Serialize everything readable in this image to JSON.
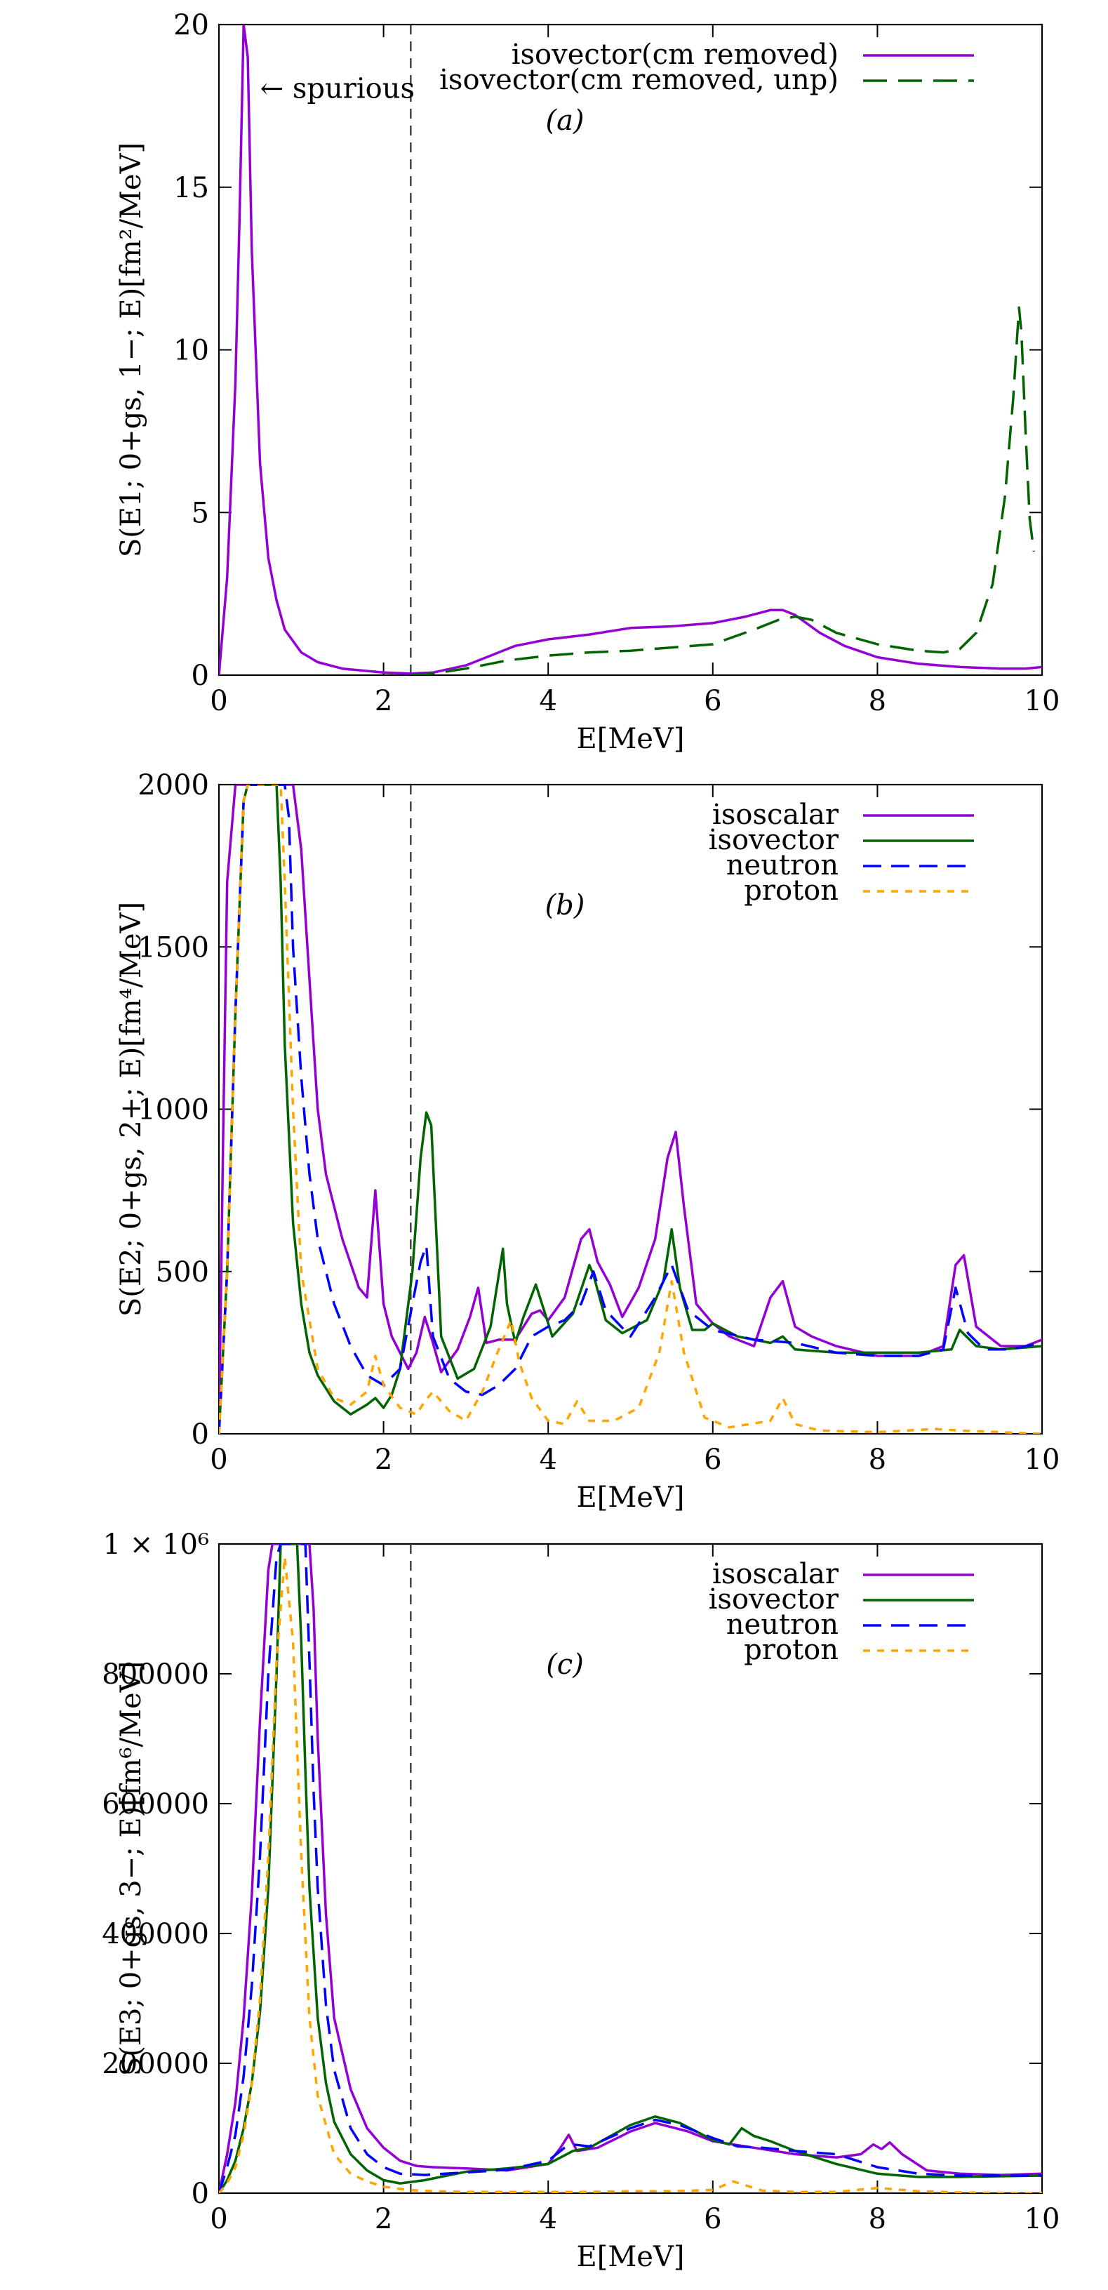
{
  "chart_data": [
    {
      "panel": "a",
      "type": "line",
      "panel_label": "(a)",
      "title": "",
      "xlabel": "E[MeV]",
      "ylabel": "S(E1; 0+gs, 1−; E)[fm²/MeV]",
      "xlim": [
        0,
        10
      ],
      "ylim": [
        0,
        20
      ],
      "xticks": [
        0,
        2,
        4,
        6,
        8,
        10
      ],
      "yticks": [
        0,
        5,
        10,
        15,
        20
      ],
      "ytick_labels": [
        "0",
        "5",
        "10",
        "15",
        "20"
      ],
      "grid": false,
      "legend_position": "top-right",
      "threshold_line_x": 2.33,
      "annotations": [
        {
          "text": "← spurious",
          "x": 0.5,
          "y": 18.0
        }
      ],
      "series": [
        {
          "name": "isovector(cm removed)",
          "color": "#9400d3",
          "dash": "solid",
          "x": [
            0.0,
            0.1,
            0.2,
            0.25,
            0.3,
            0.35,
            0.4,
            0.5,
            0.6,
            0.7,
            0.8,
            1.0,
            1.2,
            1.5,
            2.0,
            2.33,
            2.6,
            3.0,
            3.3,
            3.6,
            4.0,
            4.5,
            5.0,
            5.5,
            6.0,
            6.4,
            6.7,
            6.85,
            7.0,
            7.3,
            7.6,
            8.0,
            8.5,
            9.0,
            9.5,
            9.8,
            10.0
          ],
          "y": [
            0.0,
            3.0,
            9.0,
            14.0,
            20.0,
            19.0,
            13.0,
            6.5,
            3.6,
            2.3,
            1.4,
            0.7,
            0.4,
            0.2,
            0.08,
            0.05,
            0.08,
            0.3,
            0.6,
            0.9,
            1.1,
            1.25,
            1.45,
            1.5,
            1.6,
            1.8,
            2.0,
            2.0,
            1.85,
            1.3,
            0.9,
            0.55,
            0.35,
            0.25,
            0.2,
            0.2,
            0.25
          ]
        },
        {
          "name": "isovector(cm removed, unp)",
          "color": "#006400",
          "dash": "long",
          "x": [
            2.33,
            2.6,
            3.0,
            3.5,
            4.0,
            4.5,
            5.0,
            5.5,
            6.0,
            6.5,
            6.8,
            7.0,
            7.2,
            7.5,
            8.0,
            8.5,
            8.8,
            9.0,
            9.2,
            9.4,
            9.55,
            9.65,
            9.7,
            9.72,
            9.75,
            9.8,
            9.85,
            9.9
          ],
          "y": [
            0.0,
            0.05,
            0.2,
            0.45,
            0.6,
            0.7,
            0.75,
            0.85,
            0.95,
            1.4,
            1.7,
            1.8,
            1.7,
            1.3,
            0.95,
            0.75,
            0.7,
            0.8,
            1.3,
            2.8,
            5.5,
            8.5,
            10.5,
            11.3,
            10.5,
            7.5,
            4.8,
            3.8
          ]
        }
      ]
    },
    {
      "panel": "b",
      "type": "line",
      "panel_label": "(b)",
      "title": "",
      "xlabel": "E[MeV]",
      "ylabel": "S(E2; 0+gs, 2+; E)[fm⁴/MeV]",
      "xlim": [
        0,
        10
      ],
      "ylim": [
        0,
        2000
      ],
      "xticks": [
        0,
        2,
        4,
        6,
        8,
        10
      ],
      "yticks": [
        0,
        500,
        1000,
        1500,
        2000
      ],
      "ytick_labels": [
        "0",
        "500",
        "1000",
        "1500",
        "2000"
      ],
      "grid": false,
      "legend_position": "top-right",
      "threshold_line_x": 2.33,
      "series": [
        {
          "name": "isoscalar",
          "color": "#9400d3",
          "dash": "solid",
          "x": [
            0.0,
            0.05,
            0.1,
            0.2,
            0.9,
            1.0,
            1.1,
            1.2,
            1.3,
            1.5,
            1.7,
            1.8,
            1.9,
            2.0,
            2.1,
            2.3,
            2.4,
            2.5,
            2.6,
            2.7,
            2.9,
            3.05,
            3.15,
            3.25,
            3.4,
            3.6,
            3.8,
            3.9,
            4.0,
            4.2,
            4.4,
            4.5,
            4.6,
            4.75,
            4.9,
            5.1,
            5.3,
            5.45,
            5.55,
            5.65,
            5.8,
            6.0,
            6.2,
            6.5,
            6.7,
            6.85,
            7.0,
            7.2,
            7.5,
            8.0,
            8.5,
            8.8,
            8.95,
            9.05,
            9.2,
            9.5,
            9.8,
            10.0
          ],
          "y": [
            0,
            900,
            1700,
            2000,
            2000,
            1800,
            1400,
            1000,
            800,
            600,
            450,
            420,
            750,
            400,
            300,
            200,
            250,
            360,
            280,
            190,
            260,
            360,
            450,
            280,
            290,
            290,
            370,
            380,
            350,
            420,
            600,
            630,
            530,
            460,
            360,
            450,
            600,
            850,
            930,
            700,
            400,
            340,
            300,
            270,
            420,
            470,
            330,
            300,
            270,
            240,
            240,
            270,
            520,
            550,
            330,
            270,
            270,
            290
          ]
        },
        {
          "name": "isovector",
          "color": "#006400",
          "dash": "solid",
          "x": [
            0.0,
            0.1,
            0.2,
            0.3,
            0.35,
            0.7,
            0.75,
            0.8,
            0.9,
            1.0,
            1.1,
            1.2,
            1.4,
            1.6,
            1.8,
            1.9,
            2.0,
            2.1,
            2.2,
            2.35,
            2.45,
            2.52,
            2.58,
            2.7,
            2.9,
            3.1,
            3.3,
            3.45,
            3.5,
            3.6,
            3.7,
            3.85,
            3.9,
            4.05,
            4.3,
            4.5,
            4.55,
            4.7,
            4.9,
            5.2,
            5.4,
            5.5,
            5.6,
            5.75,
            5.9,
            6.0,
            6.3,
            6.7,
            6.85,
            7.0,
            7.5,
            8.0,
            8.5,
            8.9,
            9.0,
            9.2,
            9.5,
            10.0
          ],
          "y": [
            0,
            500,
            1300,
            1950,
            2000,
            2000,
            1700,
            1200,
            650,
            400,
            250,
            180,
            100,
            60,
            90,
            110,
            80,
            120,
            200,
            500,
            850,
            990,
            950,
            300,
            170,
            200,
            330,
            570,
            400,
            280,
            360,
            460,
            420,
            300,
            370,
            520,
            490,
            350,
            310,
            350,
            470,
            630,
            450,
            320,
            320,
            340,
            300,
            280,
            300,
            260,
            250,
            250,
            250,
            260,
            320,
            270,
            260,
            270
          ]
        },
        {
          "name": "neutron",
          "color": "#0000ff",
          "dash": "dashed",
          "x": [
            0.0,
            0.1,
            0.2,
            0.3,
            0.35,
            0.8,
            0.85,
            0.9,
            1.0,
            1.1,
            1.2,
            1.4,
            1.6,
            1.8,
            2.0,
            2.2,
            2.35,
            2.45,
            2.52,
            2.6,
            2.8,
            3.0,
            3.2,
            3.4,
            3.6,
            3.8,
            4.0,
            4.2,
            4.4,
            4.55,
            4.7,
            5.0,
            5.3,
            5.5,
            5.7,
            6.0,
            6.5,
            7.0,
            7.5,
            8.0,
            8.5,
            8.8,
            8.95,
            9.1,
            9.3,
            9.6,
            10.0
          ],
          "y": [
            0,
            500,
            1300,
            1950,
            2000,
            2000,
            1900,
            1500,
            1100,
            800,
            600,
            400,
            270,
            180,
            150,
            200,
            400,
            530,
            580,
            300,
            170,
            130,
            120,
            150,
            200,
            300,
            330,
            350,
            400,
            500,
            380,
            300,
            420,
            520,
            380,
            320,
            290,
            280,
            250,
            240,
            240,
            260,
            450,
            310,
            260,
            260,
            280
          ]
        },
        {
          "name": "proton",
          "color": "#ffa500",
          "dash": "dotted",
          "x": [
            0.0,
            0.1,
            0.2,
            0.3,
            0.35,
            0.75,
            0.8,
            0.9,
            1.0,
            1.2,
            1.4,
            1.6,
            1.8,
            1.9,
            2.0,
            2.2,
            2.4,
            2.5,
            2.6,
            2.7,
            2.8,
            3.0,
            3.2,
            3.4,
            3.55,
            3.65,
            3.8,
            4.0,
            4.2,
            4.35,
            4.5,
            4.8,
            5.1,
            5.35,
            5.5,
            5.65,
            5.9,
            6.2,
            6.7,
            6.85,
            7.0,
            7.3,
            8.0,
            8.7,
            9.0,
            10.0
          ],
          "y": [
            0,
            500,
            1300,
            1950,
            2000,
            2000,
            1700,
            1000,
            500,
            200,
            110,
            90,
            130,
            240,
            150,
            80,
            60,
            100,
            130,
            100,
            70,
            40,
            130,
            260,
            350,
            220,
            110,
            40,
            30,
            100,
            40,
            40,
            80,
            250,
            470,
            250,
            50,
            20,
            40,
            110,
            30,
            10,
            5,
            15,
            10,
            0
          ]
        }
      ]
    },
    {
      "panel": "c",
      "type": "line",
      "panel_label": "(c)",
      "title": "",
      "xlabel": "E[MeV]",
      "ylabel": "S(E3; 0+gs, 3−; E)[fm⁶/MeV]",
      "xlim": [
        0,
        10
      ],
      "ylim": [
        0,
        1000000
      ],
      "xticks": [
        0,
        2,
        4,
        6,
        8,
        10
      ],
      "yticks": [
        0,
        200000,
        400000,
        600000,
        800000,
        1000000
      ],
      "ytick_labels": [
        "0",
        "200000",
        "400000",
        "600000",
        "800000",
        "1 × 10⁶"
      ],
      "grid": false,
      "legend_position": "top-right",
      "threshold_line_x": 2.33,
      "series": [
        {
          "name": "isoscalar",
          "color": "#9400d3",
          "dash": "solid",
          "x": [
            0.0,
            0.1,
            0.2,
            0.3,
            0.4,
            0.5,
            0.6,
            0.65,
            1.1,
            1.15,
            1.2,
            1.3,
            1.4,
            1.6,
            1.8,
            2.0,
            2.2,
            2.4,
            2.6,
            3.0,
            3.5,
            4.0,
            4.15,
            4.25,
            4.35,
            4.6,
            5.0,
            5.3,
            5.7,
            6.0,
            6.5,
            7.0,
            7.5,
            7.8,
            7.95,
            8.05,
            8.15,
            8.3,
            8.6,
            9.0,
            9.5,
            10.0
          ],
          "y": [
            0,
            60000,
            140000,
            270000,
            460000,
            730000,
            960000,
            1000000,
            1000000,
            900000,
            700000,
            430000,
            270000,
            160000,
            100000,
            70000,
            50000,
            42000,
            40000,
            38000,
            35000,
            45000,
            70000,
            90000,
            65000,
            70000,
            95000,
            108000,
            95000,
            80000,
            70000,
            60000,
            55000,
            60000,
            75000,
            68000,
            78000,
            60000,
            35000,
            30000,
            28000,
            30000
          ]
        },
        {
          "name": "isovector",
          "color": "#006400",
          "dash": "solid",
          "x": [
            0.0,
            0.1,
            0.2,
            0.3,
            0.4,
            0.5,
            0.6,
            0.7,
            0.75,
            0.95,
            1.0,
            1.05,
            1.1,
            1.2,
            1.3,
            1.4,
            1.6,
            1.8,
            2.0,
            2.2,
            2.5,
            3.0,
            3.5,
            4.0,
            4.3,
            4.5,
            5.0,
            5.3,
            5.6,
            6.0,
            6.2,
            6.35,
            6.5,
            6.7,
            7.0,
            7.5,
            8.0,
            8.5,
            9.0,
            10.0
          ],
          "y": [
            0,
            20000,
            50000,
            100000,
            170000,
            280000,
            470000,
            800000,
            1000000,
            1000000,
            850000,
            650000,
            470000,
            270000,
            170000,
            110000,
            60000,
            35000,
            20000,
            15000,
            20000,
            33000,
            38000,
            45000,
            65000,
            70000,
            105000,
            118000,
            108000,
            82000,
            75000,
            100000,
            88000,
            80000,
            65000,
            45000,
            30000,
            25000,
            25000,
            27000
          ]
        },
        {
          "name": "neutron",
          "color": "#0000ff",
          "dash": "dashed",
          "x": [
            0.0,
            0.1,
            0.2,
            0.3,
            0.4,
            0.5,
            0.6,
            0.7,
            0.75,
            1.05,
            1.1,
            1.15,
            1.2,
            1.3,
            1.4,
            1.6,
            1.8,
            2.0,
            2.2,
            2.5,
            3.0,
            3.5,
            4.0,
            4.2,
            4.3,
            4.5,
            5.0,
            5.3,
            5.6,
            6.0,
            6.3,
            6.6,
            7.0,
            7.5,
            8.0,
            8.5,
            9.0,
            10.0
          ],
          "y": [
            0,
            40000,
            90000,
            180000,
            320000,
            520000,
            800000,
            980000,
            1000000,
            1000000,
            820000,
            620000,
            470000,
            290000,
            190000,
            100000,
            60000,
            40000,
            30000,
            28000,
            32000,
            36000,
            50000,
            70000,
            75000,
            72000,
            100000,
            113000,
            105000,
            85000,
            72000,
            70000,
            65000,
            60000,
            40000,
            30000,
            27000,
            27000
          ]
        },
        {
          "name": "proton",
          "color": "#ffa500",
          "dash": "dotted",
          "x": [
            0.0,
            0.1,
            0.2,
            0.3,
            0.4,
            0.5,
            0.6,
            0.7,
            0.8,
            0.9,
            1.0,
            1.1,
            1.2,
            1.4,
            1.6,
            1.8,
            2.0,
            2.3,
            2.6,
            3.0,
            3.5,
            4.0,
            4.5,
            5.0,
            5.5,
            6.0,
            6.25,
            6.4,
            6.6,
            7.0,
            7.5,
            8.0,
            8.5,
            9.0,
            10.0
          ],
          "y": [
            0,
            15000,
            40000,
            90000,
            170000,
            300000,
            520000,
            820000,
            980000,
            850000,
            520000,
            270000,
            150000,
            60000,
            30000,
            18000,
            10000,
            5000,
            3000,
            2000,
            2000,
            2000,
            2000,
            3000,
            3000,
            5000,
            18000,
            12000,
            4000,
            2000,
            2000,
            8000,
            3000,
            1000,
            0
          ]
        }
      ]
    }
  ]
}
